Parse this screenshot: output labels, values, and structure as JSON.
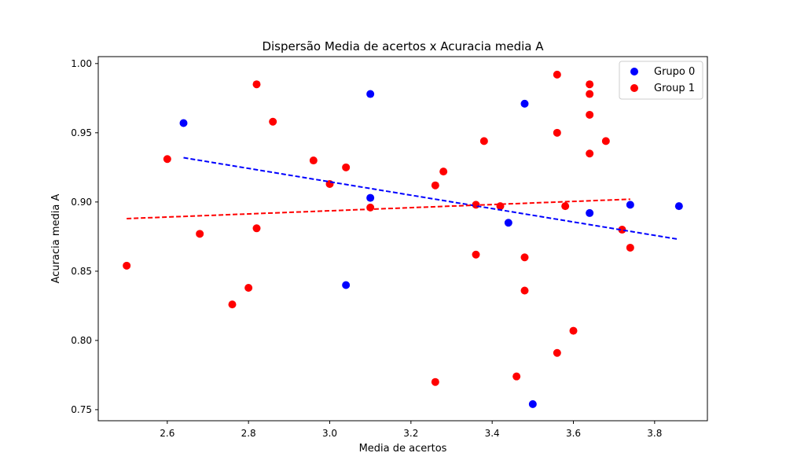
{
  "chart_data": {
    "type": "scatter",
    "title": "Dispersão Media de acertos x Acuracia media A",
    "xlabel": "Media de acertos",
    "ylabel": "Acuracia media A",
    "xlim": [
      2.43,
      3.93
    ],
    "ylim": [
      0.742,
      1.005
    ],
    "xticks": [
      2.6,
      2.8,
      3.0,
      3.2,
      3.4,
      3.6,
      3.8
    ],
    "xtick_labels": [
      "2.6",
      "2.8",
      "3.0",
      "3.2",
      "3.4",
      "3.6",
      "3.8"
    ],
    "yticks": [
      0.75,
      0.8,
      0.85,
      0.9,
      0.95,
      1.0
    ],
    "ytick_labels": [
      "0.75",
      "0.80",
      "0.85",
      "0.90",
      "0.95",
      "1.00"
    ],
    "grid": false,
    "legend_position": "top-right",
    "series": [
      {
        "name": "Grupo 0",
        "color": "#0000ff",
        "points": [
          [
            2.64,
            0.957
          ],
          [
            3.1,
            0.978
          ],
          [
            3.1,
            0.903
          ],
          [
            3.04,
            0.84
          ],
          [
            3.44,
            0.885
          ],
          [
            3.48,
            0.971
          ],
          [
            3.5,
            0.754
          ],
          [
            3.64,
            0.892
          ],
          [
            3.74,
            0.898
          ],
          [
            3.86,
            0.897
          ]
        ],
        "trendline": {
          "x": [
            2.64,
            3.86
          ],
          "y": [
            0.932,
            0.873
          ],
          "style": "dashed"
        }
      },
      {
        "name": "Group 1",
        "color": "#ff0000",
        "points": [
          [
            2.5,
            0.854
          ],
          [
            2.6,
            0.931
          ],
          [
            2.68,
            0.877
          ],
          [
            2.76,
            0.826
          ],
          [
            2.8,
            0.838
          ],
          [
            2.82,
            0.985
          ],
          [
            2.82,
            0.881
          ],
          [
            2.86,
            0.958
          ],
          [
            2.96,
            0.93
          ],
          [
            3.0,
            0.913
          ],
          [
            3.04,
            0.925
          ],
          [
            3.1,
            0.896
          ],
          [
            3.26,
            0.912
          ],
          [
            3.26,
            0.77
          ],
          [
            3.28,
            0.922
          ],
          [
            3.36,
            0.898
          ],
          [
            3.36,
            0.862
          ],
          [
            3.38,
            0.944
          ],
          [
            3.42,
            0.897
          ],
          [
            3.46,
            0.774
          ],
          [
            3.48,
            0.86
          ],
          [
            3.48,
            0.836
          ],
          [
            3.56,
            0.992
          ],
          [
            3.56,
            0.95
          ],
          [
            3.56,
            0.791
          ],
          [
            3.58,
            0.897
          ],
          [
            3.6,
            0.807
          ],
          [
            3.64,
            0.985
          ],
          [
            3.64,
            0.978
          ],
          [
            3.64,
            0.963
          ],
          [
            3.64,
            0.935
          ],
          [
            3.68,
            0.944
          ],
          [
            3.72,
            0.88
          ],
          [
            3.74,
            0.867
          ]
        ],
        "trendline": {
          "x": [
            2.5,
            3.74
          ],
          "y": [
            0.888,
            0.902
          ],
          "style": "dashed"
        }
      }
    ]
  }
}
